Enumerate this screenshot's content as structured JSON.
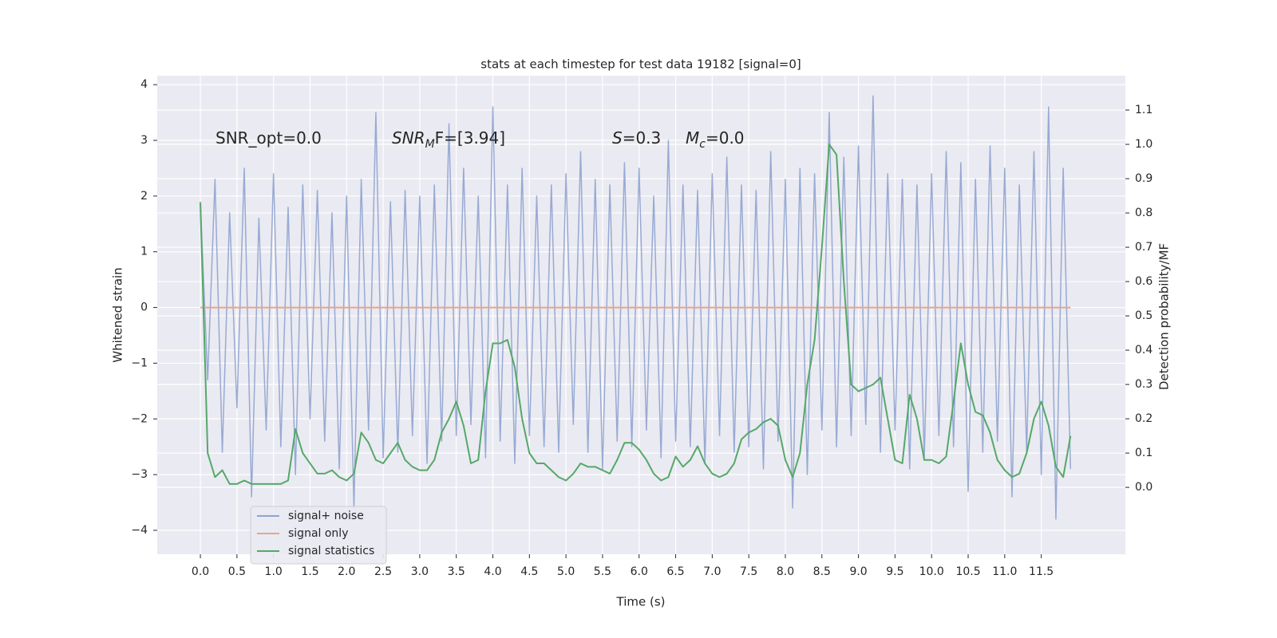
{
  "chart_data": {
    "type": "line",
    "title": "stats at each timestep for test data 19182 [signal=0]",
    "xlabel": "Time (s)",
    "ylabel": "Whitened strain",
    "y2label": "Detection probability/MF",
    "annotations": [
      {
        "main": "SNR_opt=0.0",
        "italic": false
      },
      {
        "main": "SNR",
        "sub": "M",
        "after": "F=[3.94]",
        "italic": true
      },
      {
        "main": "S",
        "after": "=0.3",
        "italic": true
      },
      {
        "main": "M",
        "sub": "c",
        "after": "=0.0",
        "italic": true
      }
    ],
    "x": [
      0.0,
      0.1,
      0.2,
      0.3,
      0.4,
      0.5,
      0.6,
      0.7,
      0.8,
      0.9,
      1.0,
      1.1,
      1.2,
      1.3,
      1.4,
      1.5,
      1.6,
      1.7,
      1.8,
      1.9,
      2.0,
      2.1,
      2.2,
      2.3,
      2.4,
      2.5,
      2.6,
      2.7,
      2.8,
      2.9,
      3.0,
      3.1,
      3.2,
      3.3,
      3.4,
      3.5,
      3.6,
      3.7,
      3.8,
      3.9,
      4.0,
      4.1,
      4.2,
      4.3,
      4.4,
      4.5,
      4.6,
      4.7,
      4.8,
      4.9,
      5.0,
      5.1,
      5.2,
      5.3,
      5.4,
      5.5,
      5.6,
      5.7,
      5.8,
      5.9,
      6.0,
      6.1,
      6.2,
      6.3,
      6.4,
      6.5,
      6.6,
      6.7,
      6.8,
      6.9,
      7.0,
      7.1,
      7.2,
      7.3,
      7.4,
      7.5,
      7.6,
      7.7,
      7.8,
      7.9,
      8.0,
      8.1,
      8.2,
      8.3,
      8.4,
      8.5,
      8.6,
      8.7,
      8.8,
      8.9,
      9.0,
      9.1,
      9.2,
      9.3,
      9.4,
      9.5,
      9.6,
      9.7,
      9.8,
      9.9,
      10.0,
      10.1,
      10.2,
      10.3,
      10.4,
      10.5,
      10.6,
      10.7,
      10.8,
      10.9,
      11.0,
      11.1,
      11.2,
      11.3,
      11.4,
      11.5,
      11.6,
      11.7,
      11.8,
      11.9
    ],
    "series": [
      {
        "name": "signal+ noise",
        "color": "#8fa3cf",
        "values": [
          1.9,
          -1.3,
          2.3,
          -2.6,
          1.7,
          -1.8,
          2.5,
          -3.4,
          1.6,
          -2.2,
          2.4,
          -2.5,
          1.8,
          -3.0,
          2.2,
          -2.0,
          2.1,
          -2.4,
          1.7,
          -2.9,
          2.0,
          -3.6,
          2.3,
          -2.2,
          3.5,
          -2.7,
          1.9,
          -2.6,
          2.1,
          -2.3,
          2.0,
          -2.8,
          2.2,
          -2.4,
          3.3,
          -2.3,
          2.5,
          -2.1,
          2.0,
          -2.7,
          3.6,
          -2.4,
          2.2,
          -2.8,
          2.5,
          -2.3,
          2.0,
          -2.5,
          2.2,
          -2.6,
          2.4,
          -2.1,
          2.8,
          -2.6,
          2.3,
          -2.9,
          2.2,
          -2.4,
          2.6,
          -2.5,
          2.5,
          -2.2,
          2.0,
          -2.7,
          3.0,
          -2.4,
          2.2,
          -2.5,
          2.1,
          -2.8,
          2.4,
          -2.3,
          2.7,
          -2.6,
          2.2,
          -2.5,
          2.1,
          -2.9,
          2.8,
          -2.4,
          2.3,
          -3.6,
          2.5,
          -3.0,
          2.4,
          -2.2,
          3.5,
          -2.5,
          2.7,
          -2.3,
          2.9,
          -2.1,
          3.8,
          -2.6,
          2.4,
          -2.2,
          2.3,
          -2.9,
          2.2,
          -2.7,
          2.4,
          -2.3,
          2.8,
          -2.5,
          2.6,
          -3.3,
          2.3,
          -2.6,
          2.9,
          -2.4,
          2.5,
          -3.4,
          2.2,
          -2.6,
          2.8,
          -3.0,
          3.6,
          -3.8,
          2.5,
          -2.9
        ]
      },
      {
        "name": "signal only",
        "color": "#e8a58c",
        "values": [
          0,
          0,
          0,
          0,
          0,
          0,
          0,
          0,
          0,
          0,
          0,
          0,
          0,
          0,
          0,
          0,
          0,
          0,
          0,
          0,
          0,
          0,
          0,
          0,
          0,
          0,
          0,
          0,
          0,
          0,
          0,
          0,
          0,
          0,
          0,
          0,
          0,
          0,
          0,
          0,
          0,
          0,
          0,
          0,
          0,
          0,
          0,
          0,
          0,
          0,
          0,
          0,
          0,
          0,
          0,
          0,
          0,
          0,
          0,
          0,
          0,
          0,
          0,
          0,
          0,
          0,
          0,
          0,
          0,
          0,
          0,
          0,
          0,
          0,
          0,
          0,
          0,
          0,
          0,
          0,
          0,
          0,
          0,
          0,
          0,
          0,
          0,
          0,
          0,
          0,
          0,
          0,
          0,
          0,
          0,
          0,
          0,
          0,
          0,
          0,
          0,
          0,
          0,
          0,
          0,
          0,
          0,
          0,
          0,
          0,
          0,
          0,
          0,
          0,
          0,
          0,
          0,
          0,
          0,
          0
        ]
      },
      {
        "name": "signal statistics",
        "color": "#55a868",
        "axis": "y2",
        "values": [
          0.83,
          0.1,
          0.03,
          0.05,
          0.01,
          0.01,
          0.02,
          0.01,
          0.01,
          0.01,
          0.01,
          0.01,
          0.02,
          0.17,
          0.1,
          0.07,
          0.04,
          0.04,
          0.05,
          0.03,
          0.02,
          0.04,
          0.16,
          0.13,
          0.08,
          0.07,
          0.1,
          0.13,
          0.08,
          0.06,
          0.05,
          0.05,
          0.08,
          0.16,
          0.2,
          0.25,
          0.18,
          0.07,
          0.08,
          0.28,
          0.42,
          0.42,
          0.43,
          0.35,
          0.2,
          0.1,
          0.07,
          0.07,
          0.05,
          0.03,
          0.02,
          0.04,
          0.07,
          0.06,
          0.06,
          0.05,
          0.04,
          0.08,
          0.13,
          0.13,
          0.11,
          0.08,
          0.04,
          0.02,
          0.03,
          0.09,
          0.06,
          0.08,
          0.12,
          0.07,
          0.04,
          0.03,
          0.04,
          0.07,
          0.14,
          0.16,
          0.17,
          0.19,
          0.2,
          0.18,
          0.08,
          0.03,
          0.1,
          0.3,
          0.43,
          0.7,
          1.0,
          0.97,
          0.6,
          0.3,
          0.28,
          0.29,
          0.3,
          0.32,
          0.2,
          0.08,
          0.07,
          0.27,
          0.2,
          0.08,
          0.08,
          0.07,
          0.09,
          0.25,
          0.42,
          0.3,
          0.22,
          0.21,
          0.16,
          0.08,
          0.05,
          0.03,
          0.04,
          0.1,
          0.2,
          0.25,
          0.18,
          0.06,
          0.03,
          0.15
        ]
      }
    ],
    "xlim": [
      -0.59,
      12.65
    ],
    "ylim": [
      -4.43,
      4.16
    ],
    "y2lim": [
      -0.195,
      1.2
    ],
    "xticks": [
      {
        "value": 0,
        "label": "0.0"
      },
      {
        "value": 0.5,
        "label": "0.5"
      },
      {
        "value": 1,
        "label": "1.0"
      },
      {
        "value": 1.5,
        "label": "1.5"
      },
      {
        "value": 2,
        "label": "2.0"
      },
      {
        "value": 2.5,
        "label": "2.5"
      },
      {
        "value": 3,
        "label": "3.0"
      },
      {
        "value": 3.5,
        "label": "3.5"
      },
      {
        "value": 4,
        "label": "4.0"
      },
      {
        "value": 4.5,
        "label": "4.5"
      },
      {
        "value": 5,
        "label": "5.0"
      },
      {
        "value": 5.5,
        "label": "5.5"
      },
      {
        "value": 6,
        "label": "6.0"
      },
      {
        "value": 6.5,
        "label": "6.5"
      },
      {
        "value": 7,
        "label": "7.0"
      },
      {
        "value": 7.5,
        "label": "7.5"
      },
      {
        "value": 8,
        "label": "8.0"
      },
      {
        "value": 8.5,
        "label": "8.5"
      },
      {
        "value": 9,
        "label": "9.0"
      },
      {
        "value": 9.5,
        "label": "9.5"
      },
      {
        "value": 10,
        "label": "10.0"
      },
      {
        "value": 10.5,
        "label": "10.5"
      },
      {
        "value": 11,
        "label": "11.0"
      },
      {
        "value": 11.5,
        "label": "11.5"
      }
    ],
    "yticks": [
      {
        "value": -4,
        "label": "−4"
      },
      {
        "value": -3,
        "label": "−3"
      },
      {
        "value": -2,
        "label": "−2"
      },
      {
        "value": -1,
        "label": "−1"
      },
      0,
      1,
      2,
      3,
      4
    ],
    "y2ticks": [
      {
        "value": 0,
        "label": "0.0"
      },
      {
        "value": 0.1,
        "label": "0.1"
      },
      {
        "value": 0.2,
        "label": "0.2"
      },
      {
        "value": 0.3,
        "label": "0.3"
      },
      {
        "value": 0.4,
        "label": "0.4"
      },
      {
        "value": 0.5,
        "label": "0.5"
      },
      {
        "value": 0.6,
        "label": "0.6"
      },
      {
        "value": 0.7,
        "label": "0.7"
      },
      {
        "value": 0.8,
        "label": "0.8"
      },
      {
        "value": 0.9,
        "label": "0.9"
      },
      {
        "value": 1,
        "label": "1.0"
      },
      {
        "value": 1.1,
        "label": "1.1"
      }
    ],
    "grid": true,
    "legend": "lower left"
  }
}
